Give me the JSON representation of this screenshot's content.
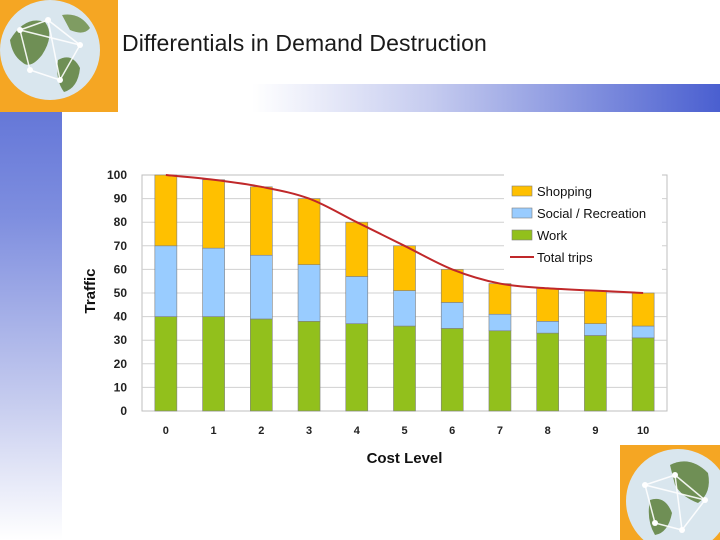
{
  "slide": {
    "title": "Differentials in Demand Destruction"
  },
  "colors": {
    "shopping": "#ffc000",
    "social": "#99ccff",
    "work": "#92c01c",
    "total": "#c0282a",
    "accent": "#4a5fd0",
    "orange": "#f5a623"
  },
  "chart_data": {
    "type": "bar",
    "stacked": true,
    "title": "",
    "xlabel": "Cost Level",
    "ylabel": "Traffic",
    "ylim": [
      0,
      100
    ],
    "yticks": [
      0,
      10,
      20,
      30,
      40,
      50,
      60,
      70,
      80,
      90,
      100
    ],
    "categories": [
      "0",
      "1",
      "2",
      "3",
      "4",
      "5",
      "6",
      "7",
      "8",
      "9",
      "10"
    ],
    "series": [
      {
        "name": "Work",
        "key": "work",
        "values": [
          40,
          40,
          39,
          38,
          37,
          36,
          35,
          34,
          33,
          32,
          31
        ]
      },
      {
        "name": "Social / Recreation",
        "key": "social",
        "values": [
          30,
          29,
          27,
          24,
          20,
          15,
          11,
          7,
          5,
          5,
          5
        ]
      },
      {
        "name": "Shopping",
        "key": "shopping",
        "values": [
          30,
          29,
          29,
          28,
          23,
          19,
          14,
          13,
          14,
          14,
          14
        ]
      }
    ],
    "line": {
      "name": "Total trips",
      "key": "total",
      "values": [
        100,
        98,
        95,
        90,
        80,
        70,
        60,
        54,
        52,
        51,
        50
      ]
    },
    "legend": [
      "Shopping",
      "Social / Recreation",
      "Work",
      "Total trips"
    ],
    "legend_position": "top-right"
  }
}
